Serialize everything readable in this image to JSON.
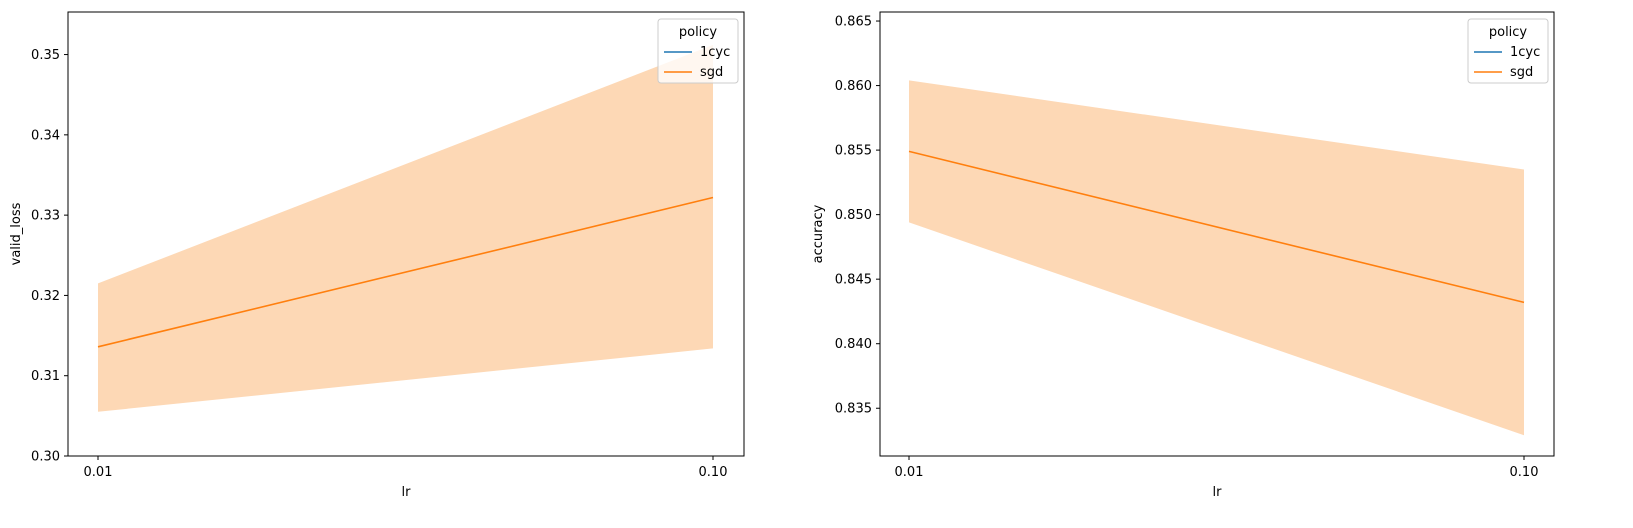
{
  "chart_data": [
    {
      "type": "line",
      "xlabel": "lr",
      "ylabel": "valid_loss",
      "x_ticks": [
        "0.01",
        "0.10"
      ],
      "y_ticks": [
        "0.30",
        "0.31",
        "0.32",
        "0.33",
        "0.34",
        "0.35"
      ],
      "ylim": [
        0.3,
        0.3553
      ],
      "legend": {
        "title": "policy",
        "placement": "top-right"
      },
      "series": [
        {
          "name": "1cyc",
          "color": "#1f77b4",
          "x": [],
          "y": []
        },
        {
          "name": "sgd",
          "color": "#ff7f0e",
          "x": [
            0.01,
            0.1
          ],
          "y": [
            0.3136,
            0.3322
          ],
          "ci_low": [
            0.3055,
            0.3134
          ],
          "ci_high": [
            0.3215,
            0.3512
          ]
        }
      ],
      "band_color": "#fdd8b5"
    },
    {
      "type": "line",
      "xlabel": "lr",
      "ylabel": "accuracy",
      "x_ticks": [
        "0.01",
        "0.10"
      ],
      "y_ticks": [
        "0.835",
        "0.840",
        "0.845",
        "0.850",
        "0.855",
        "0.860",
        "0.865"
      ],
      "ylim": [
        0.8313,
        0.8657
      ],
      "legend": {
        "title": "policy",
        "placement": "top-right"
      },
      "series": [
        {
          "name": "1cyc",
          "color": "#1f77b4",
          "x": [],
          "y": []
        },
        {
          "name": "sgd",
          "color": "#ff7f0e",
          "x": [
            0.01,
            0.1
          ],
          "y": [
            0.8549,
            0.8432
          ],
          "ci_low": [
            0.8494,
            0.8329
          ],
          "ci_high": [
            0.8604,
            0.8535
          ]
        }
      ],
      "band_color": "#fdd8b5"
    }
  ]
}
